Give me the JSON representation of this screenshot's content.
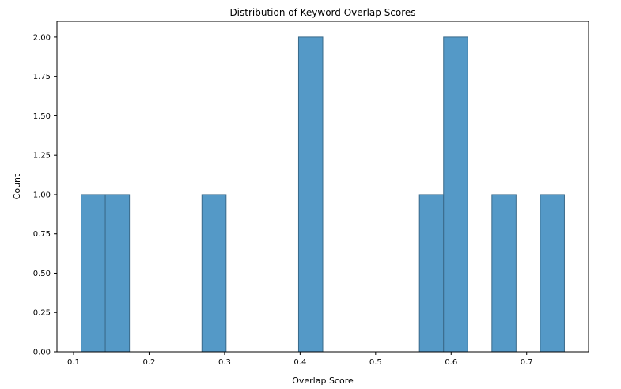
{
  "chart_data": {
    "type": "bar",
    "title": "Distribution of Keyword Overlap Scores",
    "xlabel": "Overlap Score",
    "ylabel": "Count",
    "xlim": [
      0.078,
      0.782
    ],
    "ylim": [
      0,
      2.1
    ],
    "xticks": [
      0.1,
      0.2,
      0.3,
      0.4,
      0.5,
      0.6,
      0.7
    ],
    "xtick_labels": [
      "0.1",
      "0.2",
      "0.3",
      "0.4",
      "0.5",
      "0.6",
      "0.7"
    ],
    "yticks": [
      0,
      0.25,
      0.5,
      0.75,
      1.0,
      1.25,
      1.5,
      1.75,
      2.0
    ],
    "ytick_labels": [
      "0.00",
      "0.25",
      "0.50",
      "0.75",
      "1.00",
      "1.25",
      "1.50",
      "1.75",
      "2.00"
    ],
    "grid": false,
    "bar_color": "#5499c7",
    "edge_color": "#3a6a8a",
    "bins": [
      {
        "x0": 0.11,
        "x1": 0.142,
        "count": 1
      },
      {
        "x0": 0.142,
        "x1": 0.174,
        "count": 1
      },
      {
        "x0": 0.27,
        "x1": 0.302,
        "count": 1
      },
      {
        "x0": 0.398,
        "x1": 0.43,
        "count": 2
      },
      {
        "x0": 0.558,
        "x1": 0.59,
        "count": 1
      },
      {
        "x0": 0.59,
        "x1": 0.622,
        "count": 2
      },
      {
        "x0": 0.654,
        "x1": 0.686,
        "count": 1
      },
      {
        "x0": 0.718,
        "x1": 0.75,
        "count": 1
      }
    ]
  }
}
